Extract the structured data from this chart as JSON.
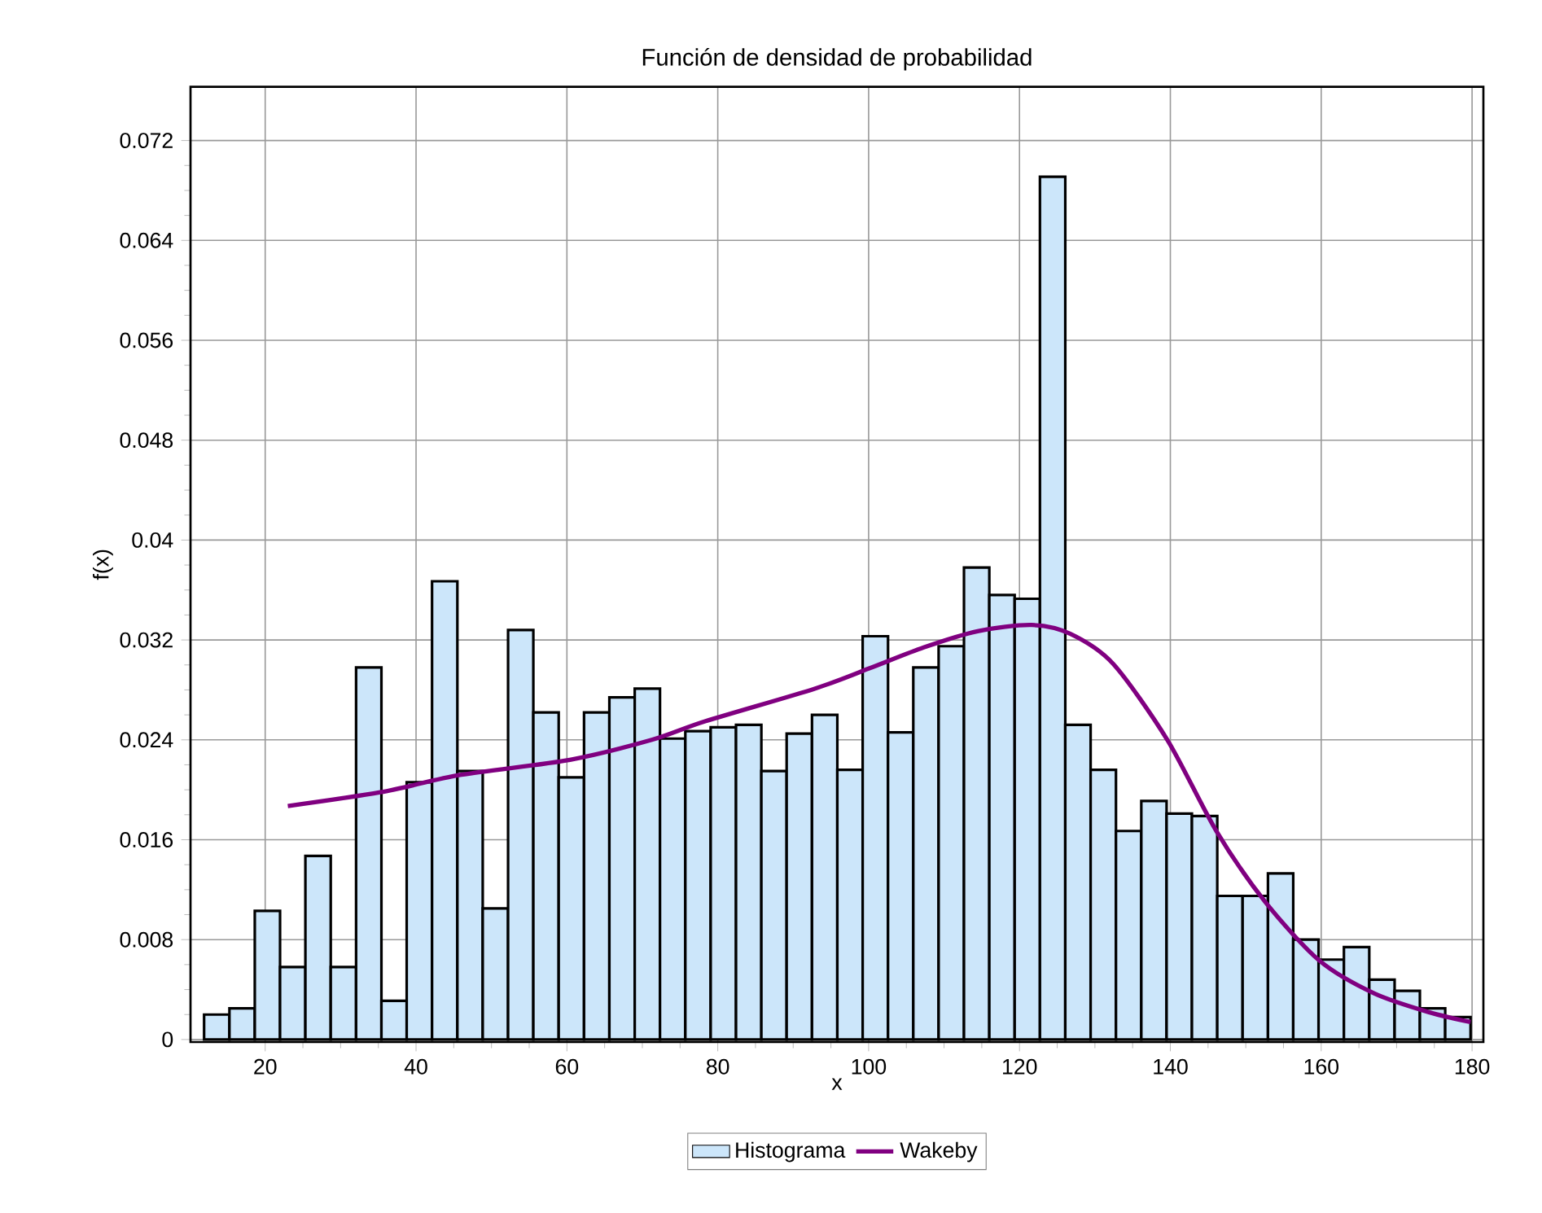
{
  "chart_data": {
    "type": "histogram",
    "title": "Función de densidad de probabilidad",
    "xlabel": "x",
    "ylabel": "f(x)",
    "xlim": [
      10.1,
      181.5
    ],
    "ylim": [
      -0.0002,
      0.0763
    ],
    "xticks": [
      20,
      40,
      60,
      80,
      100,
      120,
      140,
      160,
      180
    ],
    "yticks": [
      0,
      0.008,
      0.016,
      0.024,
      0.032,
      0.04,
      0.048,
      0.056,
      0.064,
      0.072
    ],
    "grid": true,
    "legend": "bottom",
    "series": [
      {
        "name": "Histograma",
        "color": "#cce6fa",
        "bins": [
          11.9,
          15.26,
          18.62,
          21.97,
          25.33,
          28.69,
          32.05,
          35.41,
          38.76,
          42.12,
          45.48,
          48.84,
          52.2,
          55.55,
          58.91,
          62.27,
          65.63,
          68.99,
          72.34,
          75.7,
          79.06,
          82.42,
          85.78,
          89.13,
          92.49,
          95.85,
          99.21,
          102.57,
          105.92,
          109.28,
          112.64,
          116.0,
          119.36,
          122.71,
          126.07,
          129.43,
          132.79,
          136.15,
          139.5,
          142.86,
          146.22,
          149.58,
          152.94,
          156.29,
          159.65,
          163.01,
          166.37,
          169.73,
          173.08,
          176.44,
          179.8
        ],
        "values": [
          0.002,
          0.0025,
          0.0103,
          0.0058,
          0.0147,
          0.0058,
          0.0298,
          0.0031,
          0.0206,
          0.0367,
          0.0215,
          0.0105,
          0.0328,
          0.0262,
          0.021,
          0.0262,
          0.0274,
          0.0281,
          0.0241,
          0.0247,
          0.025,
          0.0252,
          0.0215,
          0.0245,
          0.026,
          0.0216,
          0.0323,
          0.0246,
          0.0298,
          0.0315,
          0.0378,
          0.0356,
          0.0353,
          0.0691,
          0.0252,
          0.0216,
          0.0167,
          0.0191,
          0.0181,
          0.0179,
          0.0115,
          0.0115,
          0.0133,
          0.008,
          0.0064,
          0.0074,
          0.0048,
          0.0039,
          0.0025,
          0.0018
        ]
      },
      {
        "name": "Wakeby",
        "type": "line",
        "color": "#800080",
        "x": [
          23.0,
          35.25,
          46.0,
          60.4,
          71.25,
          78.4,
          92.85,
          100.0,
          107.3,
          114.45,
          121.6,
          126.7,
          132.4,
          139.6,
          146.1,
          152.6,
          159.8,
          167.0,
          174.2,
          179.8
        ],
        "values": [
          0.0187,
          0.0198,
          0.0212,
          0.0224,
          0.024,
          0.0255,
          0.0281,
          0.0297,
          0.0314,
          0.0327,
          0.0332,
          0.0325,
          0.0301,
          0.024,
          0.0167,
          0.011,
          0.0063,
          0.0037,
          0.0022,
          0.0014
        ]
      }
    ]
  }
}
